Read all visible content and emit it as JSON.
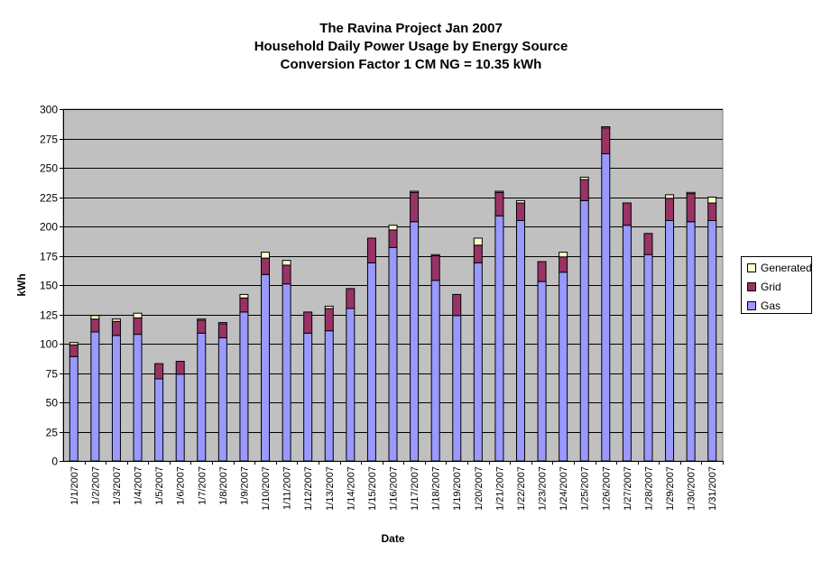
{
  "chart_data": {
    "type": "bar",
    "stacked": true,
    "title": "The Ravina Project Jan 2007",
    "subtitle": "Household Daily Power Usage by Energy Source",
    "subtitle2": "Conversion Factor 1 CM NG = 10.35 kWh",
    "xlabel": "Date",
    "ylabel": "kWh",
    "ylim": [
      0,
      300
    ],
    "yticks": [
      0,
      25,
      50,
      75,
      100,
      125,
      150,
      175,
      200,
      225,
      250,
      275,
      300
    ],
    "grid": true,
    "legend_position": "right",
    "categories": [
      "1/1/2007",
      "1/2/2007",
      "1/3/2007",
      "1/4/2007",
      "1/5/2007",
      "1/6/2007",
      "1/7/2007",
      "1/8/2007",
      "1/9/2007",
      "1/10/2007",
      "1/11/2007",
      "1/12/2007",
      "1/13/2007",
      "1/14/2007",
      "1/15/2007",
      "1/16/2007",
      "1/17/2007",
      "1/18/2007",
      "1/19/2007",
      "1/20/2007",
      "1/21/2007",
      "1/22/2007",
      "1/23/2007",
      "1/24/2007",
      "1/25/2007",
      "1/26/2007",
      "1/27/2007",
      "1/28/2007",
      "1/29/2007",
      "1/30/2007",
      "1/31/2007"
    ],
    "series": [
      {
        "name": "Gas",
        "color": "#9999ff",
        "values": [
          89,
          110,
          107,
          108,
          70,
          74,
          109,
          105,
          127,
          159,
          151,
          109,
          111,
          130,
          169,
          182,
          204,
          154,
          124,
          169,
          209,
          205,
          153,
          161,
          222,
          262,
          201,
          176,
          205,
          204,
          205
        ]
      },
      {
        "name": "Grid",
        "color": "#993366",
        "values": [
          10,
          11,
          12,
          14,
          13,
          11,
          11,
          12,
          12,
          14,
          16,
          18,
          19,
          17,
          21,
          15,
          25,
          21,
          18,
          15,
          20,
          15,
          17,
          13,
          18,
          22,
          19,
          18,
          19,
          24,
          15
        ]
      },
      {
        "name": "Generated",
        "color": "#ffffcc",
        "values": [
          2,
          3,
          2,
          4,
          0,
          0,
          1,
          1,
          3,
          5,
          4,
          0,
          2,
          0,
          0,
          4,
          1,
          1,
          0,
          6,
          1,
          2,
          0,
          4,
          2,
          1,
          0,
          0,
          3,
          1,
          5
        ]
      }
    ],
    "legend_order": [
      "Generated",
      "Grid",
      "Gas"
    ]
  }
}
